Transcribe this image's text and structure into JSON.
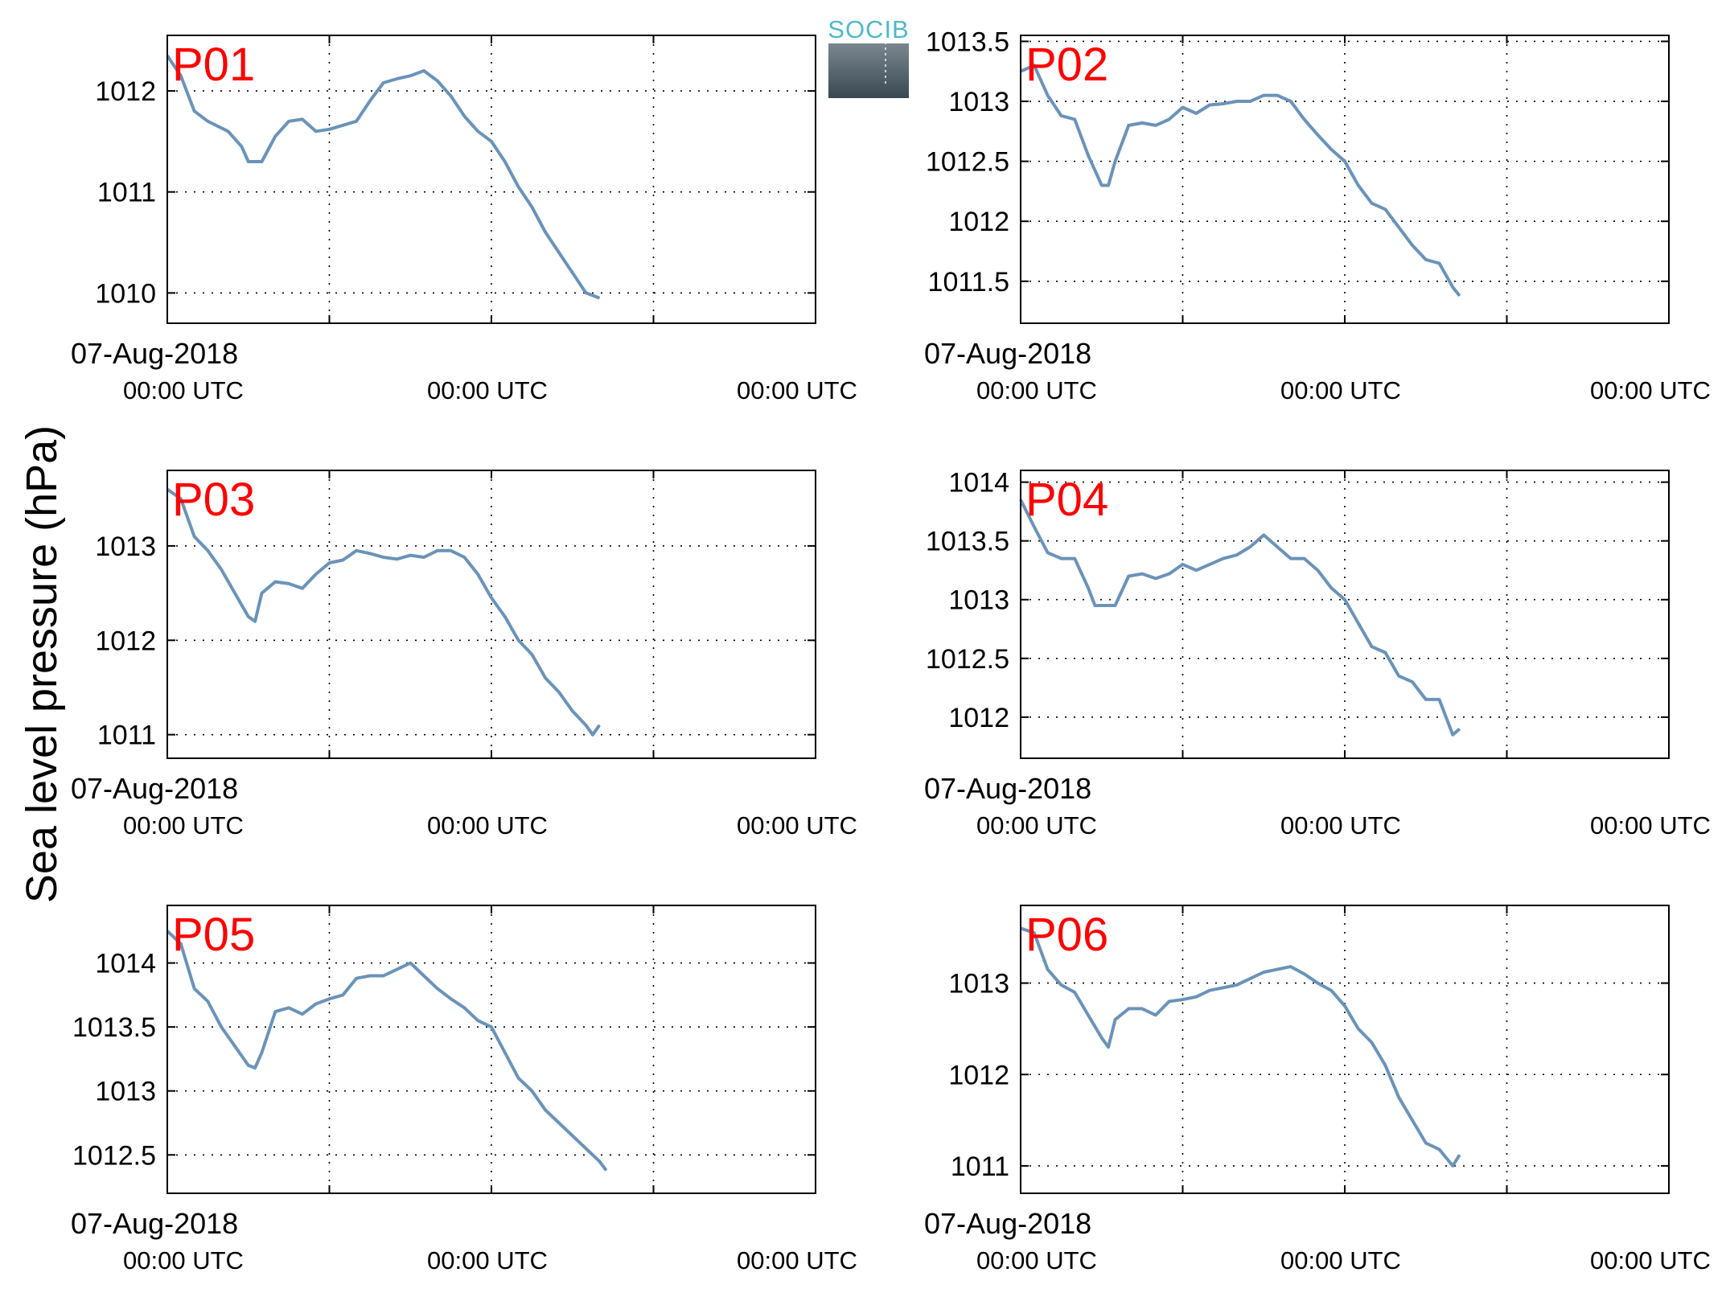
{
  "figure": {
    "ylabel": "Sea level pressure (hPa)",
    "logo_text": "SOCIB",
    "line_color": "#6b93b8",
    "title_color": "#ff0000"
  },
  "chart_data": [
    {
      "type": "line",
      "title": "P01",
      "xlabel_date": "07-Aug-2018",
      "x_tick_labels": [
        "00:00 UTC",
        "00:00 UTC",
        "00:00 UTC"
      ],
      "xlim": [
        0,
        96
      ],
      "x_ticks": [
        0,
        24,
        48,
        72
      ],
      "ylim": [
        1009.7,
        1012.55
      ],
      "y_ticks": [
        1010,
        1011,
        1012
      ],
      "y_tick_labels": [
        "1010",
        "1011",
        "1012"
      ],
      "grid": true,
      "series": [
        {
          "color": "#6b93b8",
          "x": [
            0,
            2,
            4,
            6,
            9,
            11,
            12,
            14,
            16,
            18,
            20,
            22,
            24,
            26,
            28,
            30,
            32,
            34,
            36,
            38,
            40,
            42,
            44,
            46,
            48,
            50,
            52,
            54,
            56,
            58,
            60,
            62,
            64
          ],
          "values": [
            1012.35,
            1012.15,
            1011.8,
            1011.7,
            1011.6,
            1011.45,
            1011.3,
            1011.3,
            1011.55,
            1011.7,
            1011.72,
            1011.6,
            1011.62,
            1011.66,
            1011.7,
            1011.9,
            1012.08,
            1012.12,
            1012.15,
            1012.2,
            1012.1,
            1011.95,
            1011.75,
            1011.6,
            1011.5,
            1011.3,
            1011.05,
            1010.85,
            1010.6,
            1010.4,
            1010.2,
            1010.0,
            1009.95
          ]
        }
      ]
    },
    {
      "type": "line",
      "title": "P02",
      "xlabel_date": "07-Aug-2018",
      "x_tick_labels": [
        "00:00 UTC",
        "00:00 UTC",
        "00:00 UTC"
      ],
      "xlim": [
        0,
        96
      ],
      "x_ticks": [
        0,
        24,
        48,
        72
      ],
      "ylim": [
        1011.15,
        1013.55
      ],
      "y_ticks": [
        1011.5,
        1012,
        1012.5,
        1013,
        1013.5
      ],
      "y_tick_labels": [
        "1011.5",
        "1012",
        "1012.5",
        "1013",
        "1013.5"
      ],
      "grid": true,
      "series": [
        {
          "color": "#6b93b8",
          "x": [
            0,
            2,
            4,
            6,
            8,
            10,
            12,
            13,
            14,
            16,
            18,
            20,
            22,
            24,
            26,
            28,
            30,
            32,
            34,
            36,
            38,
            40,
            42,
            44,
            46,
            48,
            50,
            52,
            54,
            56,
            58,
            60,
            62,
            64,
            65
          ],
          "values": [
            1013.25,
            1013.3,
            1013.05,
            1012.88,
            1012.85,
            1012.55,
            1012.3,
            1012.3,
            1012.5,
            1012.8,
            1012.82,
            1012.8,
            1012.85,
            1012.95,
            1012.9,
            1012.97,
            1012.98,
            1013.0,
            1013.0,
            1013.05,
            1013.05,
            1013.0,
            1012.85,
            1012.72,
            1012.6,
            1012.5,
            1012.3,
            1012.15,
            1012.1,
            1011.95,
            1011.8,
            1011.68,
            1011.65,
            1011.45,
            1011.38
          ]
        }
      ]
    },
    {
      "type": "line",
      "title": "P03",
      "xlabel_date": "07-Aug-2018",
      "x_tick_labels": [
        "00:00 UTC",
        "00:00 UTC",
        "00:00 UTC"
      ],
      "xlim": [
        0,
        96
      ],
      "x_ticks": [
        0,
        24,
        48,
        72
      ],
      "ylim": [
        1010.75,
        1013.8
      ],
      "y_ticks": [
        1011,
        1012,
        1013
      ],
      "y_tick_labels": [
        "1011",
        "1012",
        "1013"
      ],
      "grid": true,
      "series": [
        {
          "color": "#6b93b8",
          "x": [
            0,
            2,
            4,
            6,
            8,
            10,
            12,
            13,
            14,
            16,
            18,
            20,
            22,
            24,
            26,
            28,
            30,
            32,
            34,
            36,
            38,
            40,
            42,
            44,
            46,
            48,
            50,
            52,
            54,
            56,
            58,
            60,
            62,
            63,
            64
          ],
          "values": [
            1013.6,
            1013.5,
            1013.1,
            1012.95,
            1012.75,
            1012.5,
            1012.25,
            1012.2,
            1012.5,
            1012.62,
            1012.6,
            1012.55,
            1012.7,
            1012.82,
            1012.85,
            1012.95,
            1012.92,
            1012.88,
            1012.86,
            1012.9,
            1012.88,
            1012.95,
            1012.95,
            1012.88,
            1012.7,
            1012.45,
            1012.25,
            1012.0,
            1011.85,
            1011.6,
            1011.45,
            1011.25,
            1011.1,
            1011.0,
            1011.1
          ]
        }
      ]
    },
    {
      "type": "line",
      "title": "P04",
      "xlabel_date": "07-Aug-2018",
      "x_tick_labels": [
        "00:00 UTC",
        "00:00 UTC",
        "00:00 UTC"
      ],
      "xlim": [
        0,
        96
      ],
      "x_ticks": [
        0,
        24,
        48,
        72
      ],
      "ylim": [
        1011.65,
        1014.1
      ],
      "y_ticks": [
        1012,
        1012.5,
        1013,
        1013.5,
        1014
      ],
      "y_tick_labels": [
        "1012",
        "1012.5",
        "1013",
        "1013.5",
        "1014"
      ],
      "grid": true,
      "series": [
        {
          "color": "#6b93b8",
          "x": [
            0,
            2,
            4,
            6,
            8,
            10,
            11,
            12,
            14,
            16,
            18,
            20,
            22,
            24,
            26,
            28,
            30,
            32,
            34,
            36,
            38,
            40,
            42,
            44,
            46,
            48,
            50,
            52,
            54,
            56,
            58,
            60,
            62,
            64,
            65
          ],
          "values": [
            1013.85,
            1013.62,
            1013.4,
            1013.35,
            1013.35,
            1013.1,
            1012.95,
            1012.95,
            1012.95,
            1013.2,
            1013.22,
            1013.18,
            1013.22,
            1013.3,
            1013.25,
            1013.3,
            1013.35,
            1013.38,
            1013.45,
            1013.55,
            1013.45,
            1013.35,
            1013.35,
            1013.25,
            1013.1,
            1013.0,
            1012.8,
            1012.6,
            1012.55,
            1012.35,
            1012.3,
            1012.15,
            1012.15,
            1011.85,
            1011.9
          ]
        }
      ]
    },
    {
      "type": "line",
      "title": "P05",
      "xlabel_date": "07-Aug-2018",
      "x_tick_labels": [
        "00:00 UTC",
        "00:00 UTC",
        "00:00 UTC"
      ],
      "xlim": [
        0,
        96
      ],
      "x_ticks": [
        0,
        24,
        48,
        72
      ],
      "ylim": [
        1012.2,
        1014.45
      ],
      "y_ticks": [
        1012.5,
        1013,
        1013.5,
        1014
      ],
      "y_tick_labels": [
        "1012.5",
        "1013",
        "1013.5",
        "1014"
      ],
      "grid": true,
      "series": [
        {
          "color": "#6b93b8",
          "x": [
            0,
            2,
            4,
            6,
            8,
            10,
            12,
            13,
            14,
            16,
            18,
            20,
            22,
            24,
            26,
            28,
            30,
            32,
            34,
            36,
            38,
            40,
            42,
            44,
            46,
            48,
            50,
            52,
            54,
            56,
            58,
            60,
            62,
            64,
            65
          ],
          "values": [
            1014.25,
            1014.15,
            1013.8,
            1013.7,
            1013.5,
            1013.35,
            1013.2,
            1013.18,
            1013.3,
            1013.62,
            1013.65,
            1013.6,
            1013.68,
            1013.72,
            1013.75,
            1013.88,
            1013.9,
            1013.9,
            1013.95,
            1014.0,
            1013.9,
            1013.8,
            1013.72,
            1013.65,
            1013.55,
            1013.5,
            1013.3,
            1013.1,
            1013.0,
            1012.85,
            1012.75,
            1012.65,
            1012.55,
            1012.45,
            1012.38
          ]
        }
      ]
    },
    {
      "type": "line",
      "title": "P06",
      "xlabel_date": "07-Aug-2018",
      "x_tick_labels": [
        "00:00 UTC",
        "00:00 UTC",
        "00:00 UTC"
      ],
      "xlim": [
        0,
        96
      ],
      "x_ticks": [
        0,
        24,
        48,
        72
      ],
      "ylim": [
        1010.7,
        1013.85
      ],
      "y_ticks": [
        1011,
        1012,
        1013
      ],
      "y_tick_labels": [
        "1011",
        "1012",
        "1013"
      ],
      "grid": true,
      "series": [
        {
          "color": "#6b93b8",
          "x": [
            0,
            2,
            4,
            6,
            8,
            10,
            12,
            13,
            14,
            16,
            18,
            20,
            22,
            24,
            26,
            28,
            30,
            32,
            34,
            36,
            38,
            40,
            42,
            44,
            46,
            48,
            50,
            52,
            54,
            56,
            58,
            60,
            62,
            64,
            65
          ],
          "values": [
            1013.6,
            1013.55,
            1013.15,
            1012.98,
            1012.9,
            1012.65,
            1012.4,
            1012.3,
            1012.6,
            1012.72,
            1012.72,
            1012.65,
            1012.8,
            1012.82,
            1012.85,
            1012.92,
            1012.95,
            1012.98,
            1013.05,
            1013.12,
            1013.15,
            1013.18,
            1013.1,
            1013.0,
            1012.92,
            1012.75,
            1012.5,
            1012.35,
            1012.1,
            1011.75,
            1011.5,
            1011.25,
            1011.18,
            1011.0,
            1011.12
          ]
        }
      ]
    }
  ]
}
